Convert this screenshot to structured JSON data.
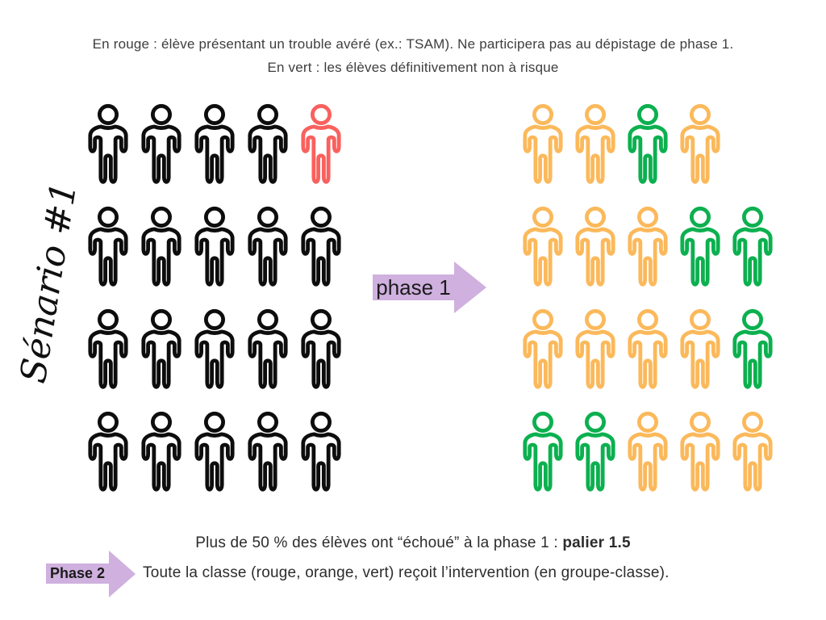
{
  "legend": {
    "line1": "En rouge : élève présentant un trouble avéré (ex.: TSAM). Ne participera pas au dépistage de phase 1.",
    "line2": "En vert : les élèves définitivement non à risque"
  },
  "scenario_label": "Sénario #1",
  "phase1_arrow": {
    "label": "phase 1"
  },
  "phase2_arrow": {
    "label": "Phase 2"
  },
  "bottom_note": {
    "line1_text": "Plus de 50 % des élèves ont “échoué” à la phase 1 : ",
    "line1_bold": "palier 1.5",
    "line2": "Toute la classe (rouge, orange, vert) reçoit l’intervention (en groupe-classe)."
  },
  "colors": {
    "black": "#0d0d0d",
    "red": "#f9615e",
    "orange": "#fbb95b",
    "green": "#0cb04f",
    "arrow_purple": "#cfb0de"
  },
  "groups": {
    "left": {
      "name": "classe-avant-phase-1",
      "rows": [
        [
          "black",
          "black",
          "black",
          "black",
          "red"
        ],
        [
          "black",
          "black",
          "black",
          "black",
          "black"
        ],
        [
          "black",
          "black",
          "black",
          "black",
          "black"
        ],
        [
          "black",
          "black",
          "black",
          "black",
          "black"
        ]
      ]
    },
    "right": {
      "name": "classe-apres-phase-1",
      "rows": [
        [
          "orange",
          "orange",
          "green",
          "orange"
        ],
        [
          "orange",
          "orange",
          "orange",
          "green",
          "green"
        ],
        [
          "orange",
          "orange",
          "orange",
          "orange",
          "green"
        ],
        [
          "green",
          "green",
          "orange",
          "orange",
          "orange"
        ]
      ]
    }
  }
}
